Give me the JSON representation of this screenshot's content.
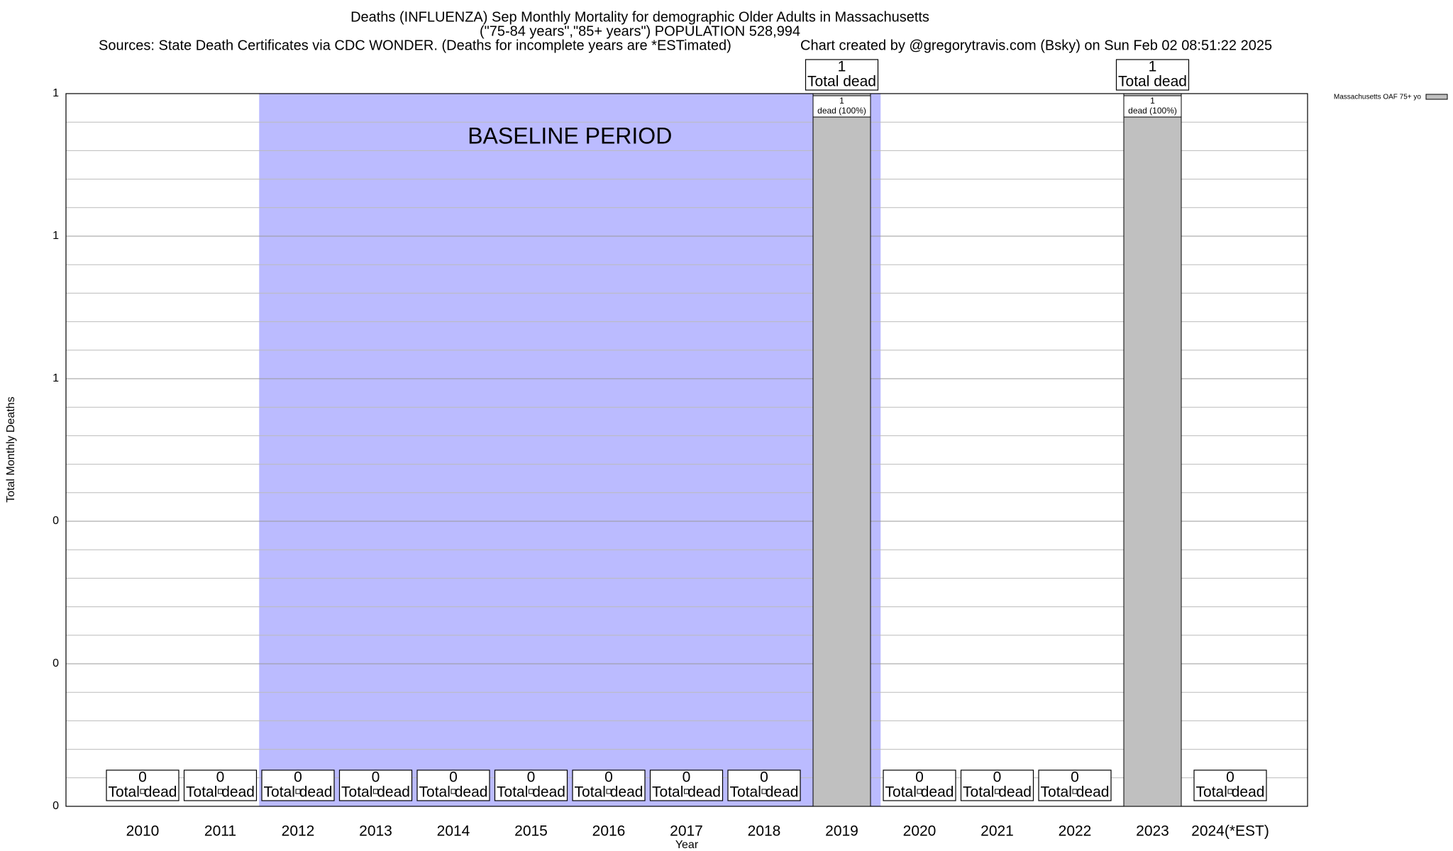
{
  "chart_data": {
    "type": "bar",
    "title": "Deaths (INFLUENZA) Sep Monthly Mortality for demographic Older Adults in Massachusetts",
    "subtitle": "(\"75-84 years\",\"85+ years\") POPULATION 528,994",
    "source": "Sources: State Death Certificates via CDC WONDER. (Deaths for incomplete years are *ESTimated)",
    "credit": "Chart created by @gregorytravis.com (Bsky) on Sun Feb 02 08:51:22 2025",
    "x_label": "Year",
    "y_label": "Total Monthly Deaths",
    "categories": [
      "2010",
      "2011",
      "2012",
      "2013",
      "2014",
      "2015",
      "2016",
      "2017",
      "2018",
      "2019",
      "2020",
      "2021",
      "2022",
      "2023",
      "2024(*EST)"
    ],
    "series": [
      {
        "name": "Massachusetts OAF 75+ yo",
        "color": "#c0c0c0",
        "values": [
          0,
          0,
          0,
          0,
          0,
          0,
          0,
          0,
          0,
          1,
          0,
          0,
          0,
          1,
          0
        ],
        "share_labels": [
          null,
          null,
          null,
          null,
          null,
          null,
          null,
          null,
          null,
          "dead (100%)",
          null,
          null,
          null,
          "dead (100%)",
          null
        ]
      }
    ],
    "total_label": "Total dead",
    "baseline": {
      "label": "BASELINE PERIOD",
      "from": "2012",
      "to": "2019",
      "color": "#bbbbff"
    },
    "ylim": [
      0,
      1
    ],
    "yticks": [
      0,
      {
        "value": 0.2,
        "label": "0"
      },
      {
        "value": 0.4,
        "label": "0"
      },
      {
        "value": 0.6,
        "label": "1"
      },
      {
        "value": 0.8,
        "label": "1"
      },
      1
    ],
    "minor_yticks": [
      0.04,
      0.08,
      0.12,
      0.16,
      0.24,
      0.28,
      0.32,
      0.36,
      0.44,
      0.48,
      0.52,
      0.56,
      0.64,
      0.68,
      0.72,
      0.76,
      0.84,
      0.88,
      0.92,
      0.96
    ],
    "grid": true,
    "legend": "top-right"
  }
}
